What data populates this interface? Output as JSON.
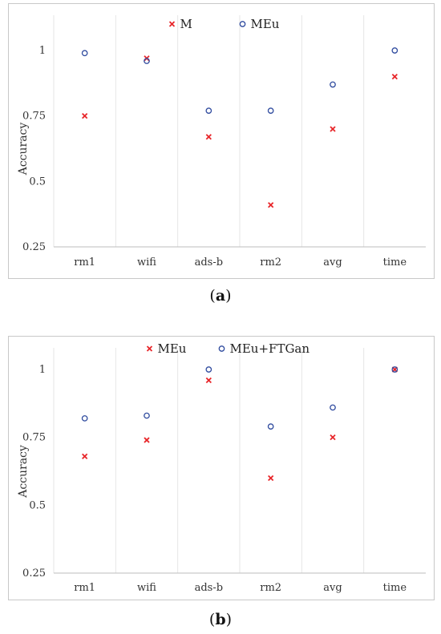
{
  "chart_data": [
    {
      "panel": "a",
      "type": "scatter",
      "categories": [
        "rm1",
        "wifi",
        "ads-b",
        "rm2",
        "avg",
        "time"
      ],
      "series": [
        {
          "name": "M",
          "marker": "x",
          "color": "#e8262a",
          "values": [
            0.75,
            0.97,
            0.67,
            0.41,
            0.7,
            0.9
          ]
        },
        {
          "name": "MEu",
          "marker": "o",
          "color": "#2e4a9e",
          "values": [
            0.99,
            0.96,
            0.77,
            0.77,
            0.87,
            1.0
          ]
        }
      ],
      "xlabel": "",
      "ylabel": "Accuracy",
      "ylim": [
        0.25,
        1
      ],
      "yticks": [
        "0.25",
        "0.5",
        "0.75",
        "1"
      ],
      "legend": "top-center",
      "grid": "vertical"
    },
    {
      "panel": "b",
      "type": "scatter",
      "categories": [
        "rm1",
        "wifi",
        "ads-b",
        "rm2",
        "avg",
        "time"
      ],
      "series": [
        {
          "name": "MEu",
          "marker": "x",
          "color": "#e8262a",
          "values": [
            0.68,
            0.74,
            0.96,
            0.6,
            0.75,
            1.0
          ]
        },
        {
          "name": "MEu+FTGan",
          "marker": "o",
          "color": "#2e4a9e",
          "values": [
            0.82,
            0.83,
            1.0,
            0.79,
            0.86,
            1.0
          ]
        }
      ],
      "xlabel": "",
      "ylabel": "Accuracy",
      "ylim": [
        0.25,
        1
      ],
      "yticks": [
        "0.25",
        "0.5",
        "0.75",
        "1"
      ],
      "legend": "top-center",
      "grid": "vertical"
    }
  ],
  "captions": {
    "a_open": "(",
    "a_letter": "a",
    "a_close": ")",
    "b_open": "(",
    "b_letter": "b",
    "b_close": ")"
  }
}
